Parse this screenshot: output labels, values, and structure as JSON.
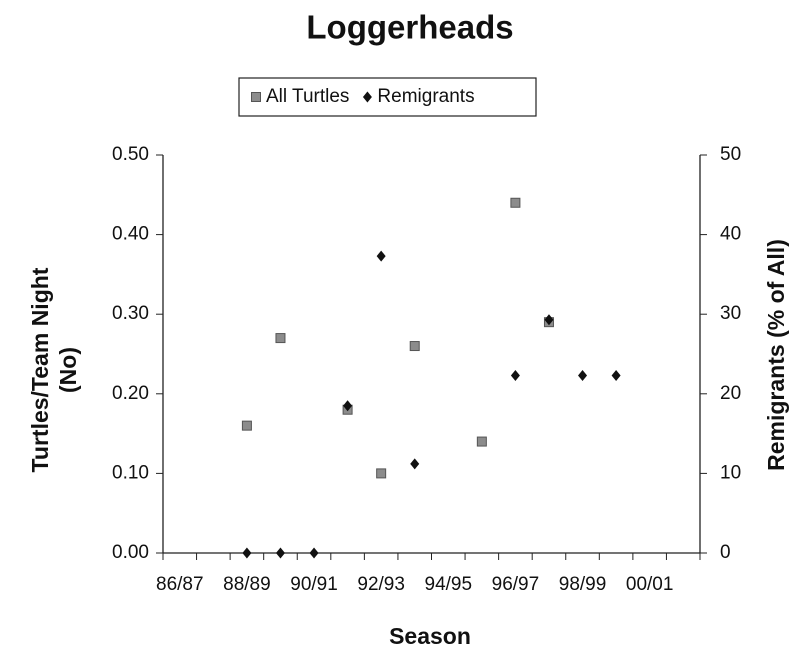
{
  "chart_data": {
    "type": "scatter",
    "title": "Loggerheads",
    "xlabel": "Season",
    "ylabel": [
      "Turtles/Team Night",
      "(No)"
    ],
    "y2label": "Remigrants (% of All)",
    "categories": [
      "86/87",
      null,
      "88/89",
      null,
      "90/91",
      null,
      "92/93",
      null,
      "94/95",
      null,
      "96/97",
      null,
      "98/99",
      null,
      "00/01",
      null
    ],
    "series": [
      {
        "name": "All Turtles",
        "color": "#8c8c8c",
        "marker": "square",
        "values": [
          null,
          null,
          0.16,
          0.27,
          null,
          0.18,
          0.1,
          0.26,
          null,
          0.14,
          0.44,
          0.29,
          null,
          null,
          null,
          null
        ]
      },
      {
        "name": "Remigrants",
        "color": "#111111",
        "marker": "diamond",
        "axis": "y2",
        "values": [
          null,
          null,
          0,
          0,
          0,
          18.5,
          37.3,
          11.2,
          null,
          null,
          22.3,
          29.3,
          22.3,
          22.3,
          null,
          null
        ]
      }
    ],
    "ylim": [
      0,
      0.5
    ],
    "yticks": [
      {
        "value": 0,
        "label": "0.00"
      },
      {
        "value": 0.1,
        "label": "0.10"
      },
      {
        "value": 0.2,
        "label": "0.20"
      },
      {
        "value": 0.3,
        "label": "0.30"
      },
      {
        "value": 0.4,
        "label": "0.40"
      },
      {
        "value": 0.5,
        "label": "0.50"
      }
    ],
    "y2lim": [
      0,
      50
    ],
    "y2ticks": [
      0,
      10,
      20,
      30,
      40,
      50
    ],
    "legend": "top",
    "grid": false
  }
}
